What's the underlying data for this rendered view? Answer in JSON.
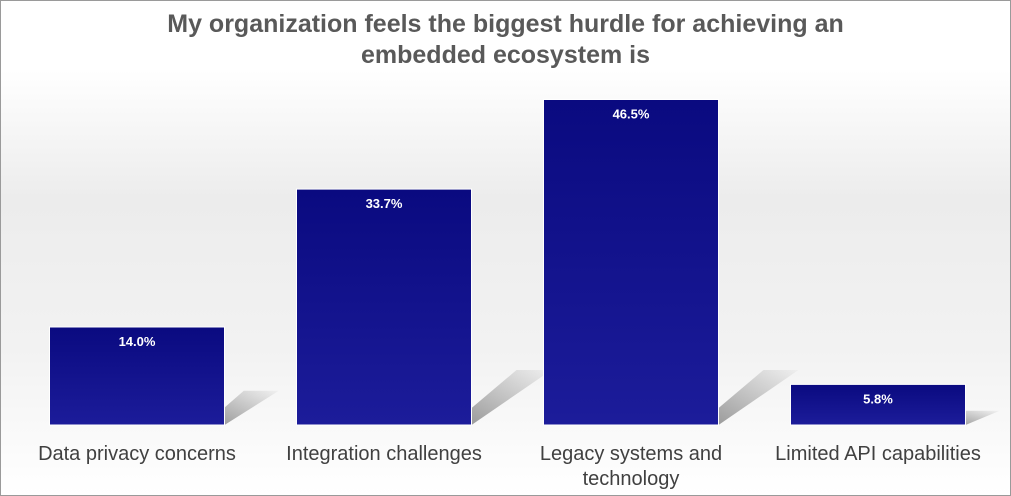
{
  "chart_data": {
    "type": "bar",
    "title_lines": [
      "My organization feels the biggest hurdle for achieving an",
      "embedded ecosystem is"
    ],
    "categories": [
      [
        "Data privacy concerns"
      ],
      [
        "Integration challenges"
      ],
      [
        "Legacy systems and",
        "technology"
      ],
      [
        "Limited API capabilities"
      ]
    ],
    "values": [
      14.0,
      33.7,
      46.5,
      5.8
    ],
    "data_labels": [
      "14.0%",
      "33.7%",
      "46.5%",
      "5.8%"
    ],
    "xlabel": "",
    "ylabel": "",
    "ylim": [
      0,
      50
    ],
    "grid": false,
    "legend": false,
    "bar_color": "#0a0a80",
    "bar_color_light": "#1c1c9a",
    "shadow_color": "#8c8c8c"
  }
}
